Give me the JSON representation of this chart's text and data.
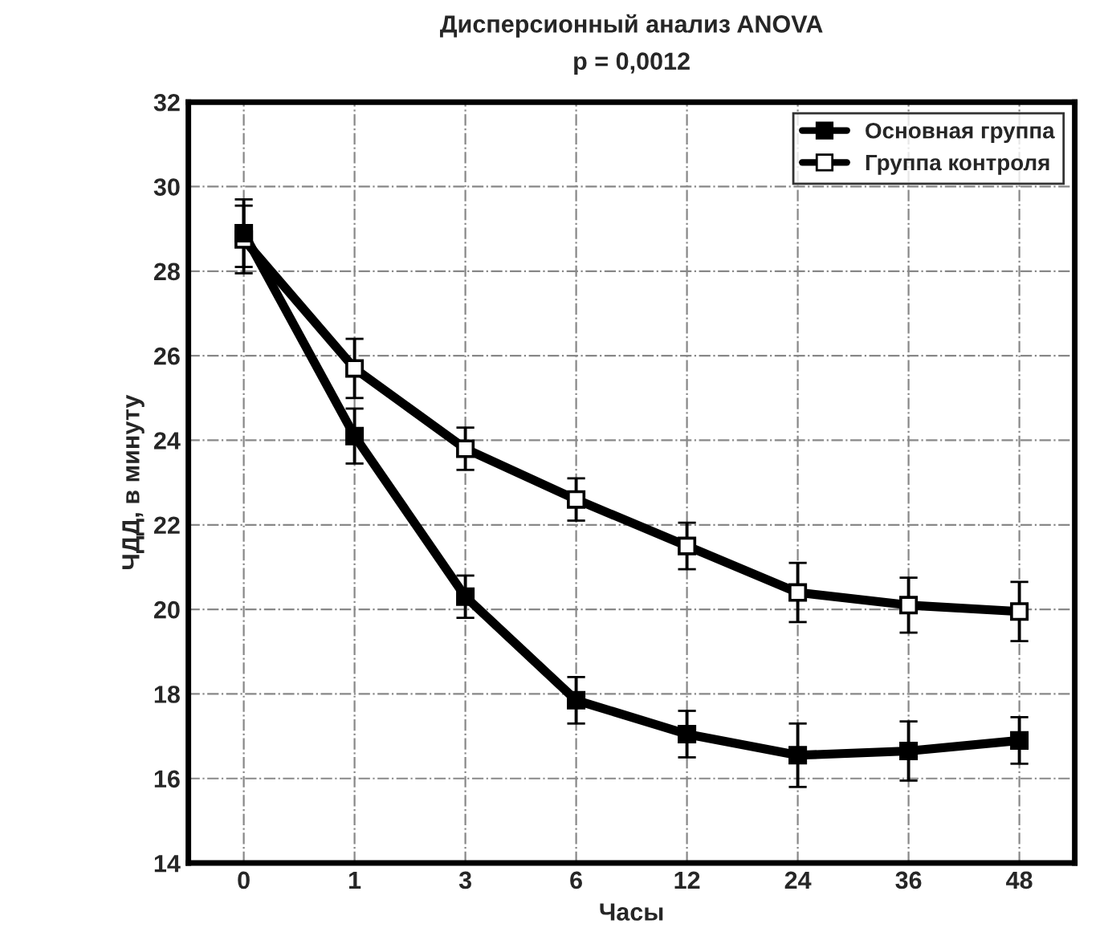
{
  "chart_data": {
    "type": "line",
    "title": "Дисперсионный анализ ANOVA",
    "subtitle": "p = 0,0012",
    "xlabel": "Часы",
    "ylabel": "ЧДД, в минуту",
    "categories": [
      "0",
      "1",
      "3",
      "6",
      "12",
      "24",
      "36",
      "48"
    ],
    "series": [
      {
        "name": "Основная группа",
        "color": "#000000",
        "values": [
          28.9,
          24.1,
          20.3,
          17.85,
          17.05,
          16.55,
          16.65,
          16.9
        ],
        "errors": [
          0.8,
          0.65,
          0.5,
          0.55,
          0.55,
          0.75,
          0.7,
          0.55
        ]
      },
      {
        "name": "Группа контроля",
        "color": "#000000",
        "values": [
          28.75,
          25.7,
          23.8,
          22.6,
          21.5,
          20.4,
          20.1,
          19.95
        ],
        "errors": [
          0.8,
          0.7,
          0.5,
          0.5,
          0.55,
          0.7,
          0.65,
          0.7
        ]
      }
    ],
    "ylim": [
      14,
      32
    ],
    "yticks": [
      14,
      16,
      18,
      20,
      22,
      24,
      26,
      28,
      30,
      32
    ],
    "grid": true,
    "legend": "top right",
    "marker": "square",
    "line_style": "solid"
  }
}
